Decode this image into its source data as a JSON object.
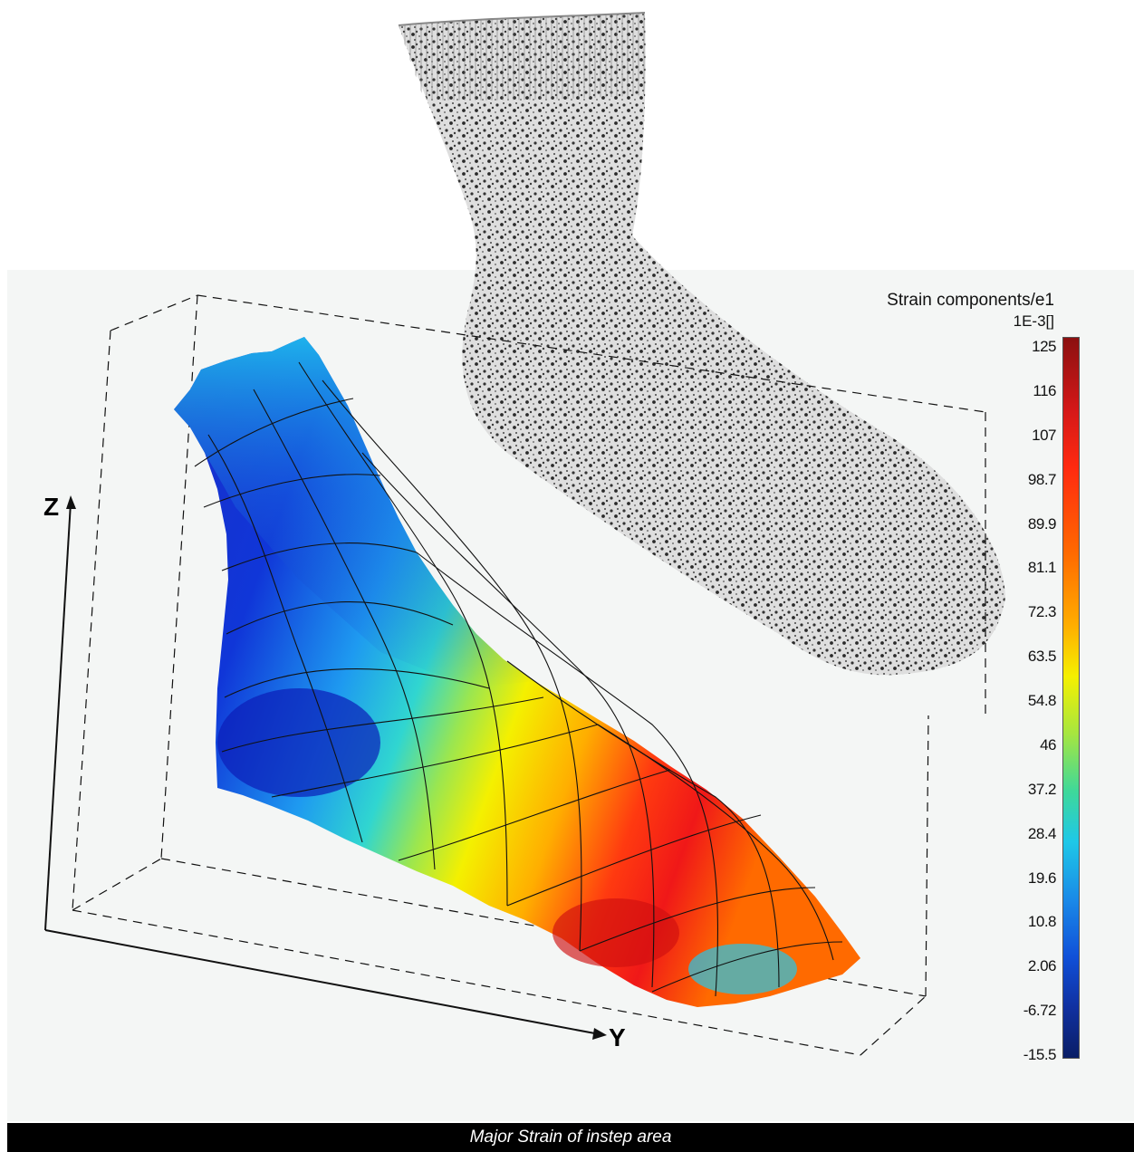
{
  "axes": {
    "z_label": "Z",
    "y_label": "Y"
  },
  "legend": {
    "title": "Strain components/e1",
    "unit": "1E-3[]",
    "ticks": [
      "125",
      "116",
      "107",
      "98.7",
      "89.9",
      "81.1",
      "72.3",
      "63.5",
      "54.8",
      "46",
      "37.2",
      "28.4",
      "19.6",
      "10.8",
      "2.06",
      "-6.72",
      "-15.5"
    ]
  },
  "caption": "Major Strain of instep area"
}
